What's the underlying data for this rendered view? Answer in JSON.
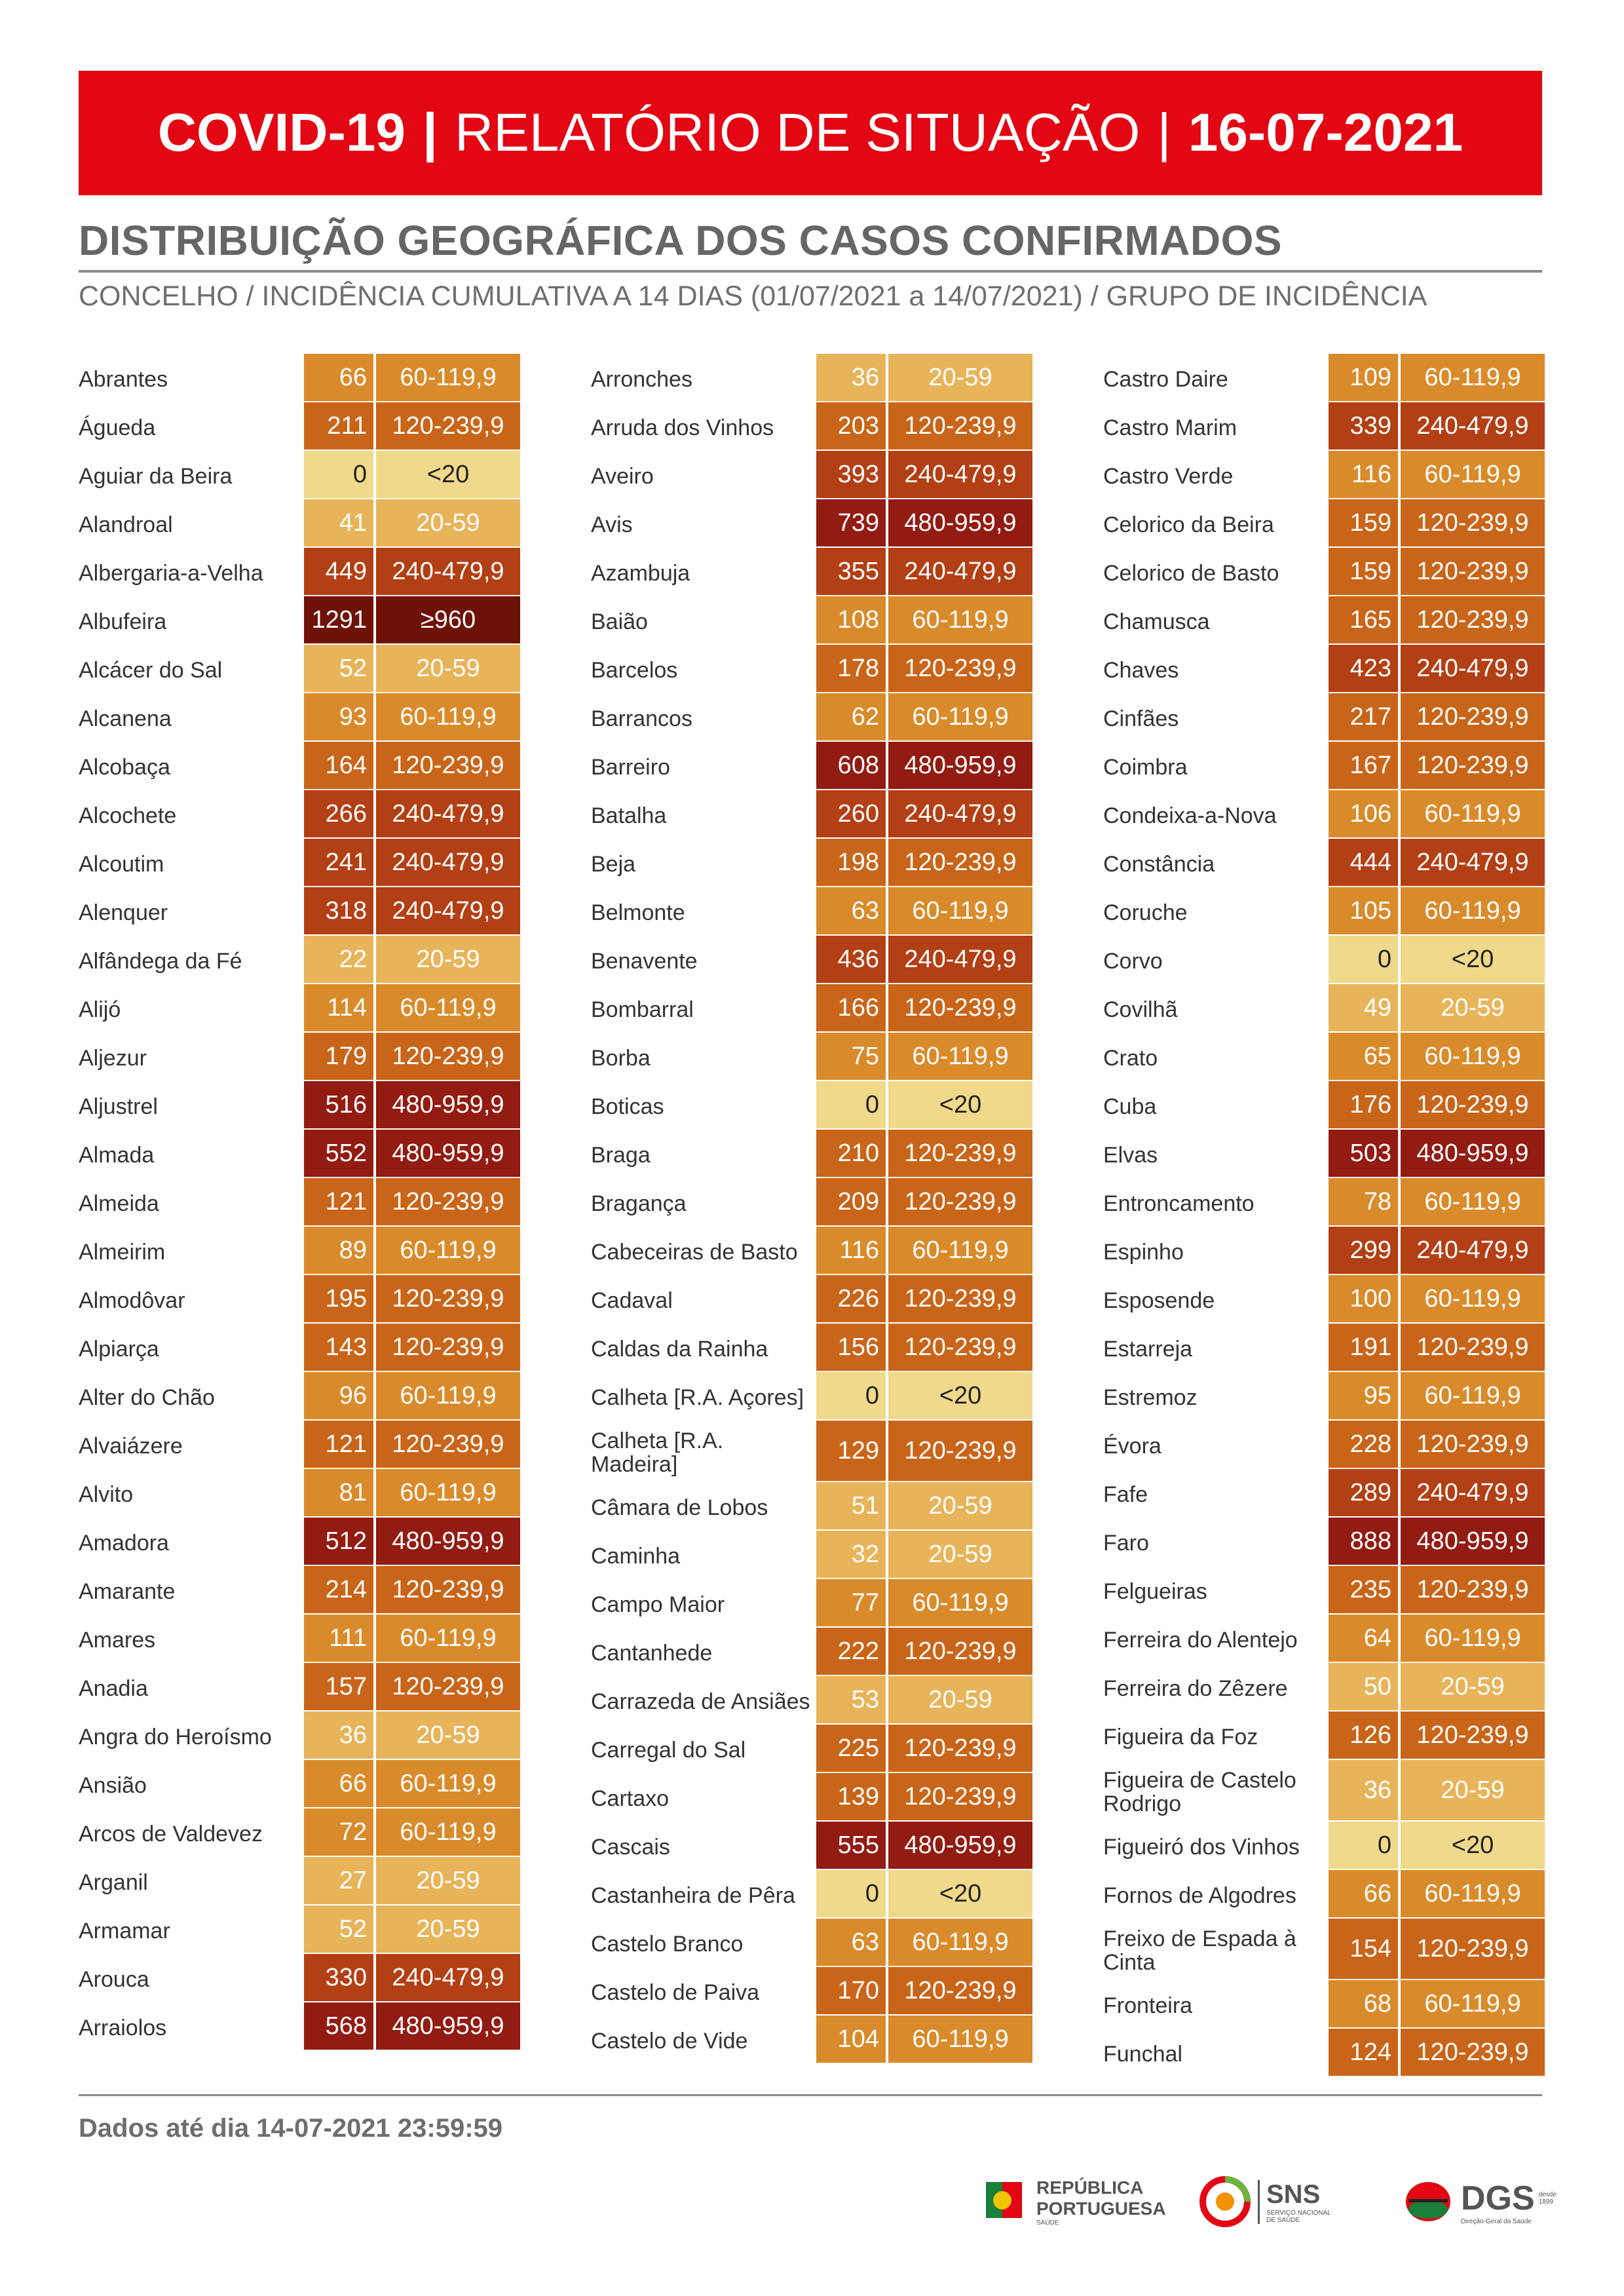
{
  "header": {
    "part1": "COVID-19",
    "separator": "|",
    "part2": "RELATÓRIO DE SITUAÇÃO",
    "part3": "16-07-2021"
  },
  "section_title": "DISTRIBUIÇÃO GEOGRÁFICA DOS CASOS CONFIRMADOS",
  "subtitle": "CONCELHO / INCIDÊNCIA CUMULATIVA A 14 DIAS (01/07/2021 a 14/07/2021) / GRUPO DE INCIDÊNCIA",
  "colors": {
    "<20": "#f0d98a",
    "20-59": "#e8b45a",
    "60-119,9": "#d98b2b",
    "120-239,9": "#c96519",
    "240-479,9": "#b33f14",
    "480-959,9": "#921b12",
    "≥960": "#6e1208"
  },
  "columns": [
    [
      {
        "name": "Abrantes",
        "value": "66",
        "group": "60-119,9"
      },
      {
        "name": "Águeda",
        "value": "211",
        "group": "120-239,9"
      },
      {
        "name": "Aguiar da Beira",
        "value": "0",
        "group": "<20"
      },
      {
        "name": "Alandroal",
        "value": "41",
        "group": "20-59"
      },
      {
        "name": "Albergaria-a-Velha",
        "value": "449",
        "group": "240-479,9"
      },
      {
        "name": "Albufeira",
        "value": "1291",
        "group": "≥960"
      },
      {
        "name": "Alcácer do Sal",
        "value": "52",
        "group": "20-59"
      },
      {
        "name": "Alcanena",
        "value": "93",
        "group": "60-119,9"
      },
      {
        "name": "Alcobaça",
        "value": "164",
        "group": "120-239,9"
      },
      {
        "name": "Alcochete",
        "value": "266",
        "group": "240-479,9"
      },
      {
        "name": "Alcoutim",
        "value": "241",
        "group": "240-479,9"
      },
      {
        "name": "Alenquer",
        "value": "318",
        "group": "240-479,9"
      },
      {
        "name": "Alfândega da Fé",
        "value": "22",
        "group": "20-59"
      },
      {
        "name": "Alijó",
        "value": "114",
        "group": "60-119,9"
      },
      {
        "name": "Aljezur",
        "value": "179",
        "group": "120-239,9"
      },
      {
        "name": "Aljustrel",
        "value": "516",
        "group": "480-959,9"
      },
      {
        "name": "Almada",
        "value": "552",
        "group": "480-959,9"
      },
      {
        "name": "Almeida",
        "value": "121",
        "group": "120-239,9"
      },
      {
        "name": "Almeirim",
        "value": "89",
        "group": "60-119,9"
      },
      {
        "name": "Almodôvar",
        "value": "195",
        "group": "120-239,9"
      },
      {
        "name": "Alpiarça",
        "value": "143",
        "group": "120-239,9"
      },
      {
        "name": "Alter do Chão",
        "value": "96",
        "group": "60-119,9"
      },
      {
        "name": "Alvaiázere",
        "value": "121",
        "group": "120-239,9"
      },
      {
        "name": "Alvito",
        "value": "81",
        "group": "60-119,9"
      },
      {
        "name": "Amadora",
        "value": "512",
        "group": "480-959,9"
      },
      {
        "name": "Amarante",
        "value": "214",
        "group": "120-239,9"
      },
      {
        "name": "Amares",
        "value": "111",
        "group": "60-119,9"
      },
      {
        "name": "Anadia",
        "value": "157",
        "group": "120-239,9"
      },
      {
        "name": "Angra do Heroísmo",
        "value": "36",
        "group": "20-59"
      },
      {
        "name": "Ansião",
        "value": "66",
        "group": "60-119,9"
      },
      {
        "name": "Arcos de Valdevez",
        "value": "72",
        "group": "60-119,9"
      },
      {
        "name": "Arganil",
        "value": "27",
        "group": "20-59"
      },
      {
        "name": "Armamar",
        "value": "52",
        "group": "20-59"
      },
      {
        "name": "Arouca",
        "value": "330",
        "group": "240-479,9"
      },
      {
        "name": "Arraiolos",
        "value": "568",
        "group": "480-959,9"
      }
    ],
    [
      {
        "name": "Arronches",
        "value": "36",
        "group": "20-59"
      },
      {
        "name": "Arruda dos Vinhos",
        "value": "203",
        "group": "120-239,9"
      },
      {
        "name": "Aveiro",
        "value": "393",
        "group": "240-479,9"
      },
      {
        "name": "Avis",
        "value": "739",
        "group": "480-959,9"
      },
      {
        "name": "Azambuja",
        "value": "355",
        "group": "240-479,9"
      },
      {
        "name": "Baião",
        "value": "108",
        "group": "60-119,9"
      },
      {
        "name": "Barcelos",
        "value": "178",
        "group": "120-239,9"
      },
      {
        "name": "Barrancos",
        "value": "62",
        "group": "60-119,9"
      },
      {
        "name": "Barreiro",
        "value": "608",
        "group": "480-959,9"
      },
      {
        "name": "Batalha",
        "value": "260",
        "group": "240-479,9"
      },
      {
        "name": "Beja",
        "value": "198",
        "group": "120-239,9"
      },
      {
        "name": "Belmonte",
        "value": "63",
        "group": "60-119,9"
      },
      {
        "name": "Benavente",
        "value": "436",
        "group": "240-479,9"
      },
      {
        "name": "Bombarral",
        "value": "166",
        "group": "120-239,9"
      },
      {
        "name": "Borba",
        "value": "75",
        "group": "60-119,9"
      },
      {
        "name": "Boticas",
        "value": "0",
        "group": "<20"
      },
      {
        "name": "Braga",
        "value": "210",
        "group": "120-239,9"
      },
      {
        "name": "Bragança",
        "value": "209",
        "group": "120-239,9"
      },
      {
        "name": "Cabeceiras de Basto",
        "value": "116",
        "group": "60-119,9"
      },
      {
        "name": "Cadaval",
        "value": "226",
        "group": "120-239,9"
      },
      {
        "name": "Caldas da Rainha",
        "value": "156",
        "group": "120-239,9"
      },
      {
        "name": "Calheta [R.A. Açores]",
        "value": "0",
        "group": "<20"
      },
      {
        "name": "Calheta [R.A. Madeira]",
        "value": "129",
        "group": "120-239,9",
        "tall": true
      },
      {
        "name": "Câmara de Lobos",
        "value": "51",
        "group": "20-59"
      },
      {
        "name": "Caminha",
        "value": "32",
        "group": "20-59"
      },
      {
        "name": "Campo Maior",
        "value": "77",
        "group": "60-119,9"
      },
      {
        "name": "Cantanhede",
        "value": "222",
        "group": "120-239,9"
      },
      {
        "name": "Carrazeda de Ansiães",
        "value": "53",
        "group": "20-59"
      },
      {
        "name": "Carregal do Sal",
        "value": "225",
        "group": "120-239,9"
      },
      {
        "name": "Cartaxo",
        "value": "139",
        "group": "120-239,9"
      },
      {
        "name": "Cascais",
        "value": "555",
        "group": "480-959,9"
      },
      {
        "name": "Castanheira de Pêra",
        "value": "0",
        "group": "<20"
      },
      {
        "name": "Castelo Branco",
        "value": "63",
        "group": "60-119,9"
      },
      {
        "name": "Castelo de Paiva",
        "value": "170",
        "group": "120-239,9"
      },
      {
        "name": "Castelo de Vide",
        "value": "104",
        "group": "60-119,9"
      }
    ],
    [
      {
        "name": "Castro Daire",
        "value": "109",
        "group": "60-119,9"
      },
      {
        "name": "Castro Marim",
        "value": "339",
        "group": "240-479,9"
      },
      {
        "name": "Castro Verde",
        "value": "116",
        "group": "60-119,9"
      },
      {
        "name": "Celorico da Beira",
        "value": "159",
        "group": "120-239,9"
      },
      {
        "name": "Celorico de Basto",
        "value": "159",
        "group": "120-239,9"
      },
      {
        "name": "Chamusca",
        "value": "165",
        "group": "120-239,9"
      },
      {
        "name": "Chaves",
        "value": "423",
        "group": "240-479,9"
      },
      {
        "name": "Cinfães",
        "value": "217",
        "group": "120-239,9"
      },
      {
        "name": "Coimbra",
        "value": "167",
        "group": "120-239,9"
      },
      {
        "name": "Condeixa-a-Nova",
        "value": "106",
        "group": "60-119,9"
      },
      {
        "name": "Constância",
        "value": "444",
        "group": "240-479,9"
      },
      {
        "name": "Coruche",
        "value": "105",
        "group": "60-119,9"
      },
      {
        "name": "Corvo",
        "value": "0",
        "group": "<20"
      },
      {
        "name": "Covilhã",
        "value": "49",
        "group": "20-59"
      },
      {
        "name": "Crato",
        "value": "65",
        "group": "60-119,9"
      },
      {
        "name": "Cuba",
        "value": "176",
        "group": "120-239,9"
      },
      {
        "name": "Elvas",
        "value": "503",
        "group": "480-959,9"
      },
      {
        "name": "Entroncamento",
        "value": "78",
        "group": "60-119,9"
      },
      {
        "name": "Espinho",
        "value": "299",
        "group": "240-479,9"
      },
      {
        "name": "Esposende",
        "value": "100",
        "group": "60-119,9"
      },
      {
        "name": "Estarreja",
        "value": "191",
        "group": "120-239,9"
      },
      {
        "name": "Estremoz",
        "value": "95",
        "group": "60-119,9"
      },
      {
        "name": "Évora",
        "value": "228",
        "group": "120-239,9"
      },
      {
        "name": "Fafe",
        "value": "289",
        "group": "240-479,9"
      },
      {
        "name": "Faro",
        "value": "888",
        "group": "480-959,9"
      },
      {
        "name": "Felgueiras",
        "value": "235",
        "group": "120-239,9"
      },
      {
        "name": "Ferreira do Alentejo",
        "value": "64",
        "group": "60-119,9"
      },
      {
        "name": "Ferreira do Zêzere",
        "value": "50",
        "group": "20-59"
      },
      {
        "name": "Figueira da Foz",
        "value": "126",
        "group": "120-239,9"
      },
      {
        "name": "Figueira de Castelo Rodrigo",
        "value": "36",
        "group": "20-59",
        "tall": true
      },
      {
        "name": "Figueiró dos Vinhos",
        "value": "0",
        "group": "<20"
      },
      {
        "name": "Fornos de Algodres",
        "value": "66",
        "group": "60-119,9"
      },
      {
        "name": "Freixo de Espada à Cinta",
        "value": "154",
        "group": "120-239,9",
        "tall": true
      },
      {
        "name": "Fronteira",
        "value": "68",
        "group": "60-119,9"
      },
      {
        "name": "Funchal",
        "value": "124",
        "group": "120-239,9"
      }
    ]
  ],
  "footer_note": "Dados até dia 14-07-2021 23:59:59",
  "logos": {
    "republica_line1": "REPÚBLICA",
    "republica_line2": "PORTUGUESA",
    "republica_sub": "SAÚDE",
    "sns": "SNS",
    "sns_sub": "SERVIÇO NACIONAL DE SAÚDE",
    "dgs": "DGS",
    "dgs_since": "desde 1899",
    "dgs_sub": "Direção-Geral da Saúde"
  }
}
